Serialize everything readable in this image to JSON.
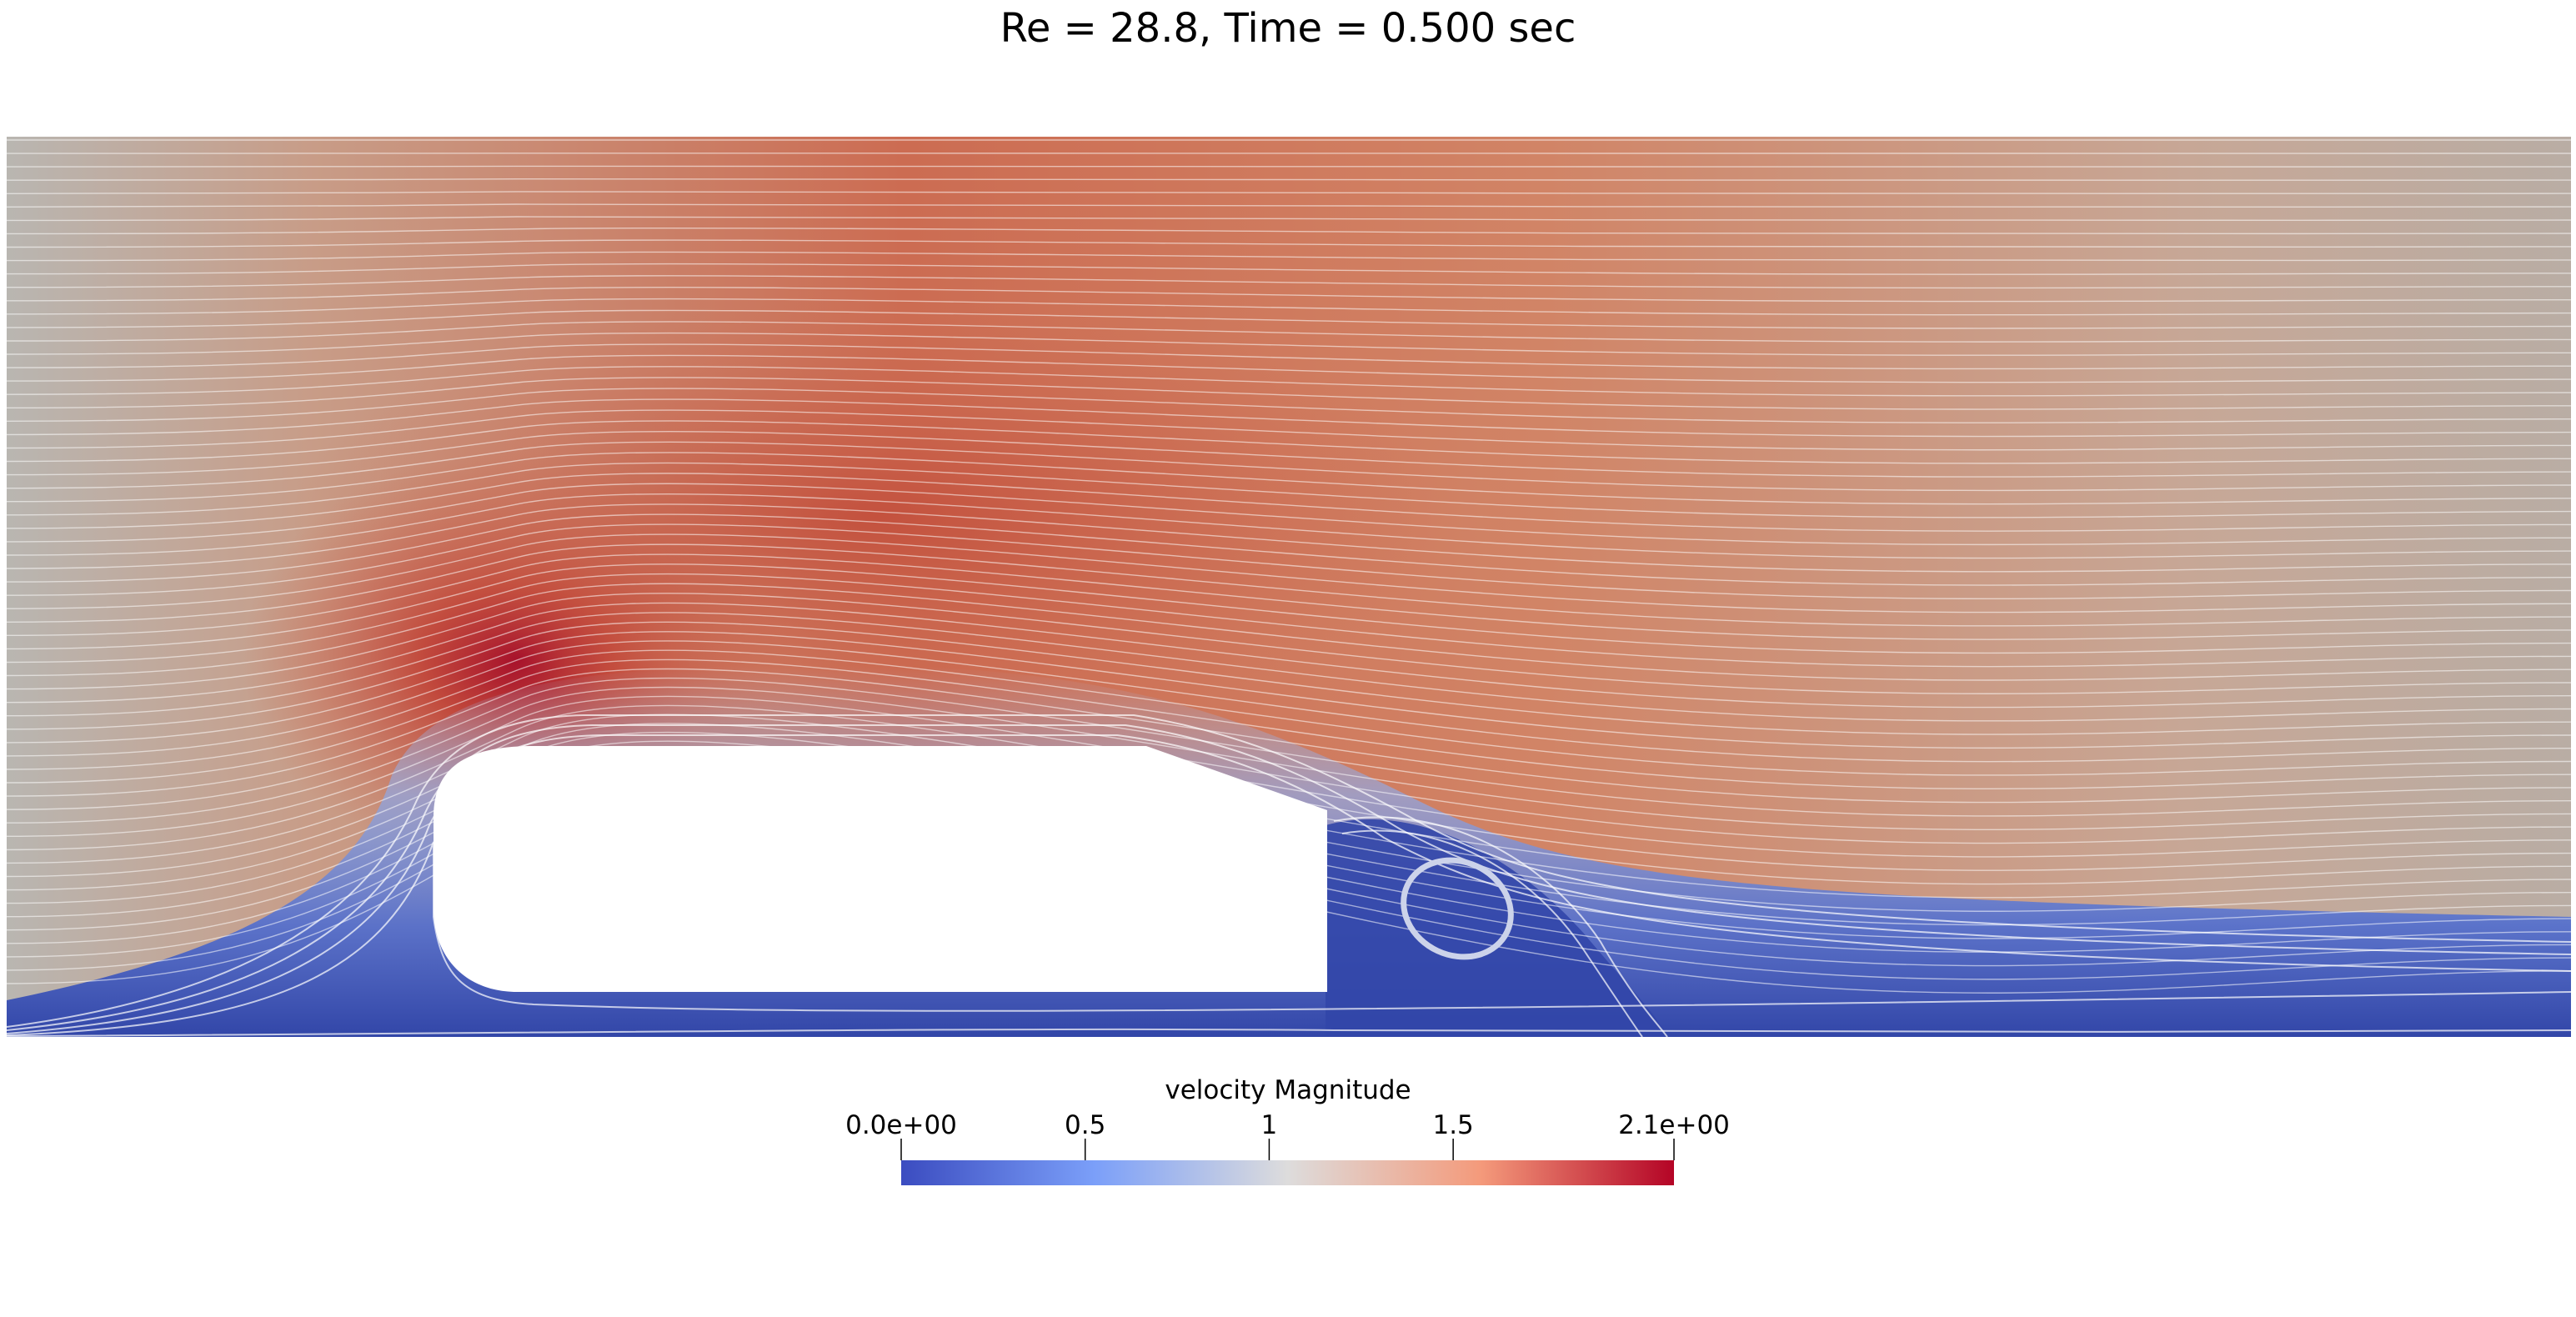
{
  "title": "Re = 28.8, Time = 0.500 sec",
  "colorbar": {
    "label": "velocity Magnitude",
    "range": [
      0.0,
      2.1
    ],
    "ticks": [
      {
        "value": 0.0,
        "label": "0.0e+00"
      },
      {
        "value": 0.5,
        "label": "0.5"
      },
      {
        "value": 1.0,
        "label": "1"
      },
      {
        "value": 1.5,
        "label": "1.5"
      },
      {
        "value": 2.1,
        "label": "2.1e+00"
      }
    ],
    "colormap": [
      "#3b4cc0",
      "#7b9ff9",
      "#dddcdc",
      "#f49a7b",
      "#b40426"
    ]
  },
  "field": {
    "ambient_color": "#b3b3b3",
    "streamline_color": "#ffffff",
    "body_color": "#ffffff",
    "wake_color": "#3246a8"
  }
}
